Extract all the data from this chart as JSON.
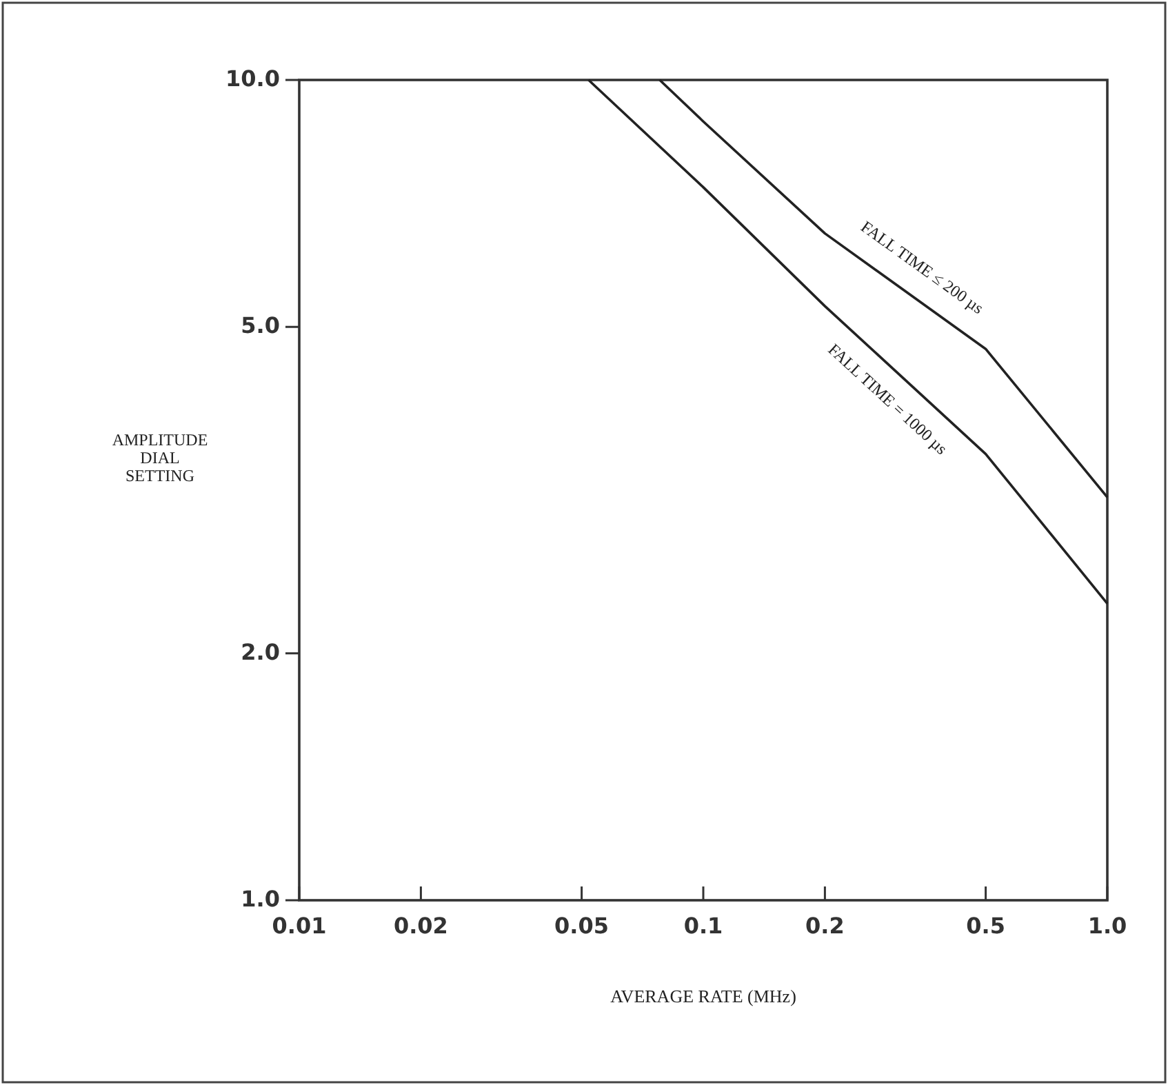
{
  "chart_data": {
    "type": "line",
    "xlabel": "AVERAGE RATE (MHz)",
    "ylabel": "AMPLITUDE\nDIAL\nSETTING",
    "log": "xy",
    "grid": false,
    "marker": "none",
    "line_style": "solid",
    "xlim": [
      0.01,
      1.0
    ],
    "ylim": [
      1.0,
      10.0
    ],
    "xticks": [
      0.01,
      0.02,
      0.05,
      0.1,
      0.2,
      0.5,
      {
        "value": 1.0,
        "label": "1.0"
      }
    ],
    "yticks": [
      {
        "value": 1.0,
        "label": "1.0"
      },
      {
        "value": 2.0,
        "label": "2.0"
      },
      {
        "value": 5.0,
        "label": "5.0"
      },
      {
        "value": 10.0,
        "label": "10.0"
      }
    ],
    "series": [
      {
        "name": "FALL TIME ≤ 200 µs",
        "color": "#222222",
        "x": [
          0.078,
          0.1,
          0.2,
          0.5,
          1.0
        ],
        "values": [
          10.0,
          8.9,
          6.5,
          4.7,
          3.1
        ]
      },
      {
        "name": "FALL TIME = 1000 µs",
        "color": "#222222",
        "x": [
          0.052,
          0.1,
          0.2,
          0.5,
          1.0
        ],
        "values": [
          10.0,
          7.4,
          5.3,
          3.5,
          2.3
        ]
      }
    ]
  }
}
